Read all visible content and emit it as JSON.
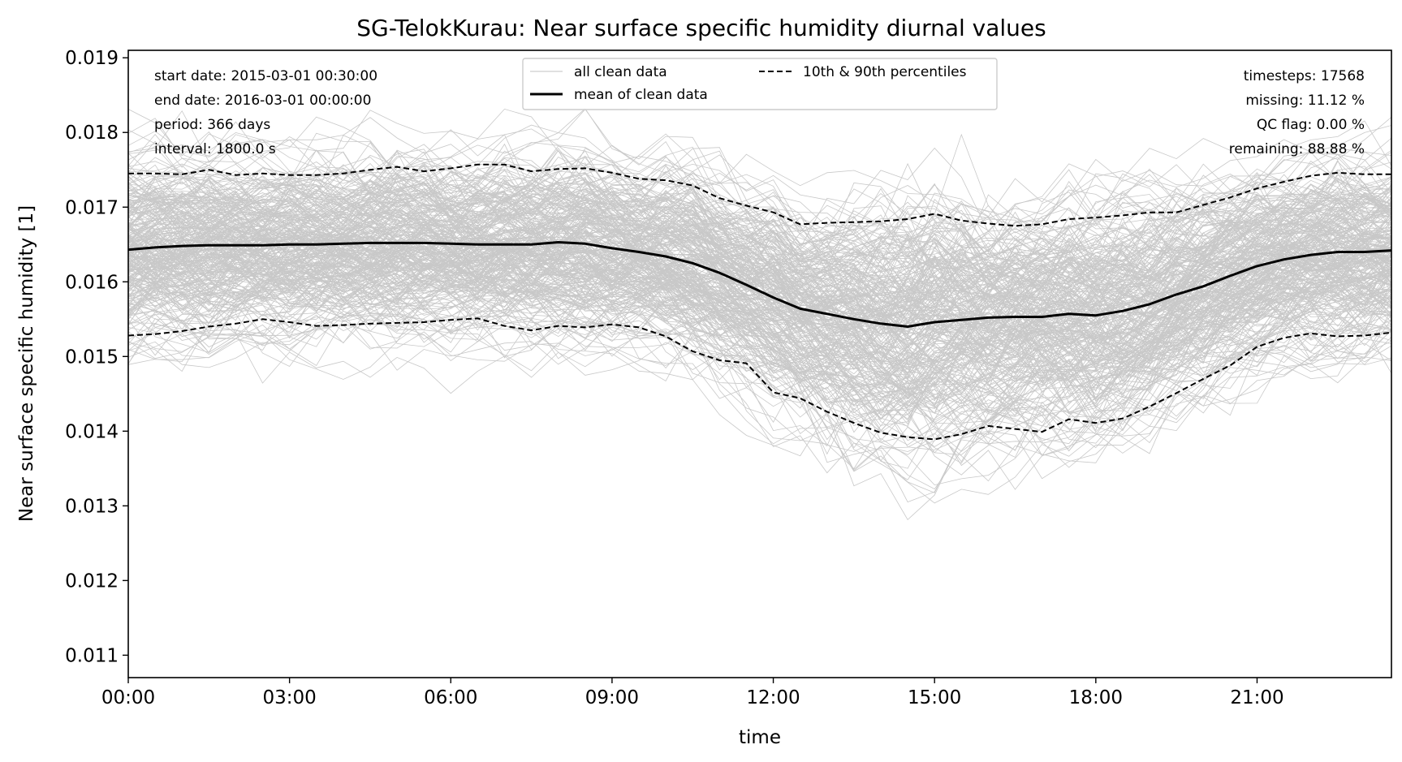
{
  "chart_data": {
    "type": "line",
    "title": "SG-TelokKurau: Near surface specific humidity diurnal values",
    "xlabel": "time",
    "ylabel": "Near surface specific humidity [1]",
    "xlim": [
      0,
      23.5
    ],
    "ylim": [
      0.0107,
      0.0191
    ],
    "x_unit": "hours",
    "x_ticks": [
      {
        "value": 0,
        "label": "00:00"
      },
      {
        "value": 3,
        "label": "03:00"
      },
      {
        "value": 6,
        "label": "06:00"
      },
      {
        "value": 9,
        "label": "09:00"
      },
      {
        "value": 12,
        "label": "12:00"
      },
      {
        "value": 15,
        "label": "15:00"
      },
      {
        "value": 18,
        "label": "18:00"
      },
      {
        "value": 21,
        "label": "21:00"
      }
    ],
    "y_ticks": [
      {
        "value": 0.011,
        "label": "0.011"
      },
      {
        "value": 0.012,
        "label": "0.012"
      },
      {
        "value": 0.013,
        "label": "0.013"
      },
      {
        "value": 0.014,
        "label": "0.014"
      },
      {
        "value": 0.015,
        "label": "0.015"
      },
      {
        "value": 0.016,
        "label": "0.016"
      },
      {
        "value": 0.017,
        "label": "0.017"
      },
      {
        "value": 0.018,
        "label": "0.018"
      },
      {
        "value": 0.019,
        "label": "0.019"
      }
    ],
    "grid": false,
    "legend_placement": "upper-center",
    "legend": [
      {
        "label": "all clean data",
        "style": "thin-grey"
      },
      {
        "label": "10th & 90th percentiles",
        "style": "dashed-black"
      },
      {
        "label": "mean of clean data",
        "style": "solid-black"
      }
    ],
    "info_left": [
      "start date: 2015-03-01 00:30:00",
      "end date: 2016-03-01 00:00:00",
      "period: 366 days",
      "interval: 1800.0 s"
    ],
    "info_right": [
      "timesteps: 17568",
      "missing: 11.12 %",
      "QC flag: 0.00 %",
      "remaining: 88.88 %"
    ],
    "x": [
      0,
      0.5,
      1,
      1.5,
      2,
      2.5,
      3,
      3.5,
      4,
      4.5,
      5,
      5.5,
      6,
      6.5,
      7,
      7.5,
      8,
      8.5,
      9,
      9.5,
      10,
      10.5,
      11,
      11.5,
      12,
      12.5,
      13,
      13.5,
      14,
      14.5,
      15,
      15.5,
      16,
      16.5,
      17,
      17.5,
      18,
      18.5,
      19,
      19.5,
      20,
      20.5,
      21,
      21.5,
      22,
      22.5,
      23,
      23.5
    ],
    "series": [
      {
        "name": "mean of clean data",
        "values": [
          0.01643,
          0.01646,
          0.01648,
          0.01649,
          0.01649,
          0.01649,
          0.0165,
          0.0165,
          0.01651,
          0.01652,
          0.01652,
          0.01652,
          0.01651,
          0.0165,
          0.0165,
          0.0165,
          0.01653,
          0.01651,
          0.01645,
          0.0164,
          0.01634,
          0.01625,
          0.01612,
          0.01596,
          0.01579,
          0.01564,
          0.01557,
          0.0155,
          0.01544,
          0.0154,
          0.01546,
          0.01549,
          0.01552,
          0.01553,
          0.01553,
          0.01557,
          0.01555,
          0.01561,
          0.0157,
          0.01583,
          0.01594,
          0.01608,
          0.01621,
          0.0163,
          0.01636,
          0.0164,
          0.0164,
          0.01642
        ]
      },
      {
        "name": "90th percentile",
        "values": [
          0.01745,
          0.01745,
          0.01744,
          0.0175,
          0.01743,
          0.01745,
          0.01743,
          0.01743,
          0.01745,
          0.0175,
          0.01754,
          0.01748,
          0.01752,
          0.01757,
          0.01757,
          0.01748,
          0.01751,
          0.01752,
          0.01746,
          0.01738,
          0.01736,
          0.01729,
          0.01712,
          0.01702,
          0.01693,
          0.01677,
          0.01679,
          0.0168,
          0.01681,
          0.01684,
          0.01691,
          0.01682,
          0.01678,
          0.01675,
          0.01677,
          0.01684,
          0.01686,
          0.01689,
          0.01693,
          0.01693,
          0.01703,
          0.01713,
          0.01725,
          0.01734,
          0.01742,
          0.01746,
          0.01744,
          0.01744
        ]
      },
      {
        "name": "10th percentile",
        "values": [
          0.01528,
          0.0153,
          0.01534,
          0.0154,
          0.01544,
          0.0155,
          0.01546,
          0.01541,
          0.01542,
          0.01544,
          0.01545,
          0.01546,
          0.01549,
          0.01551,
          0.01541,
          0.01535,
          0.01541,
          0.01539,
          0.01543,
          0.01539,
          0.01527,
          0.01507,
          0.01495,
          0.01491,
          0.01452,
          0.01444,
          0.01426,
          0.01411,
          0.01398,
          0.01392,
          0.01389,
          0.01396,
          0.01407,
          0.01403,
          0.01399,
          0.01416,
          0.01411,
          0.01417,
          0.01433,
          0.01451,
          0.0147,
          0.01488,
          0.01513,
          0.01525,
          0.01531,
          0.01527,
          0.01528,
          0.01532
        ]
      }
    ]
  }
}
